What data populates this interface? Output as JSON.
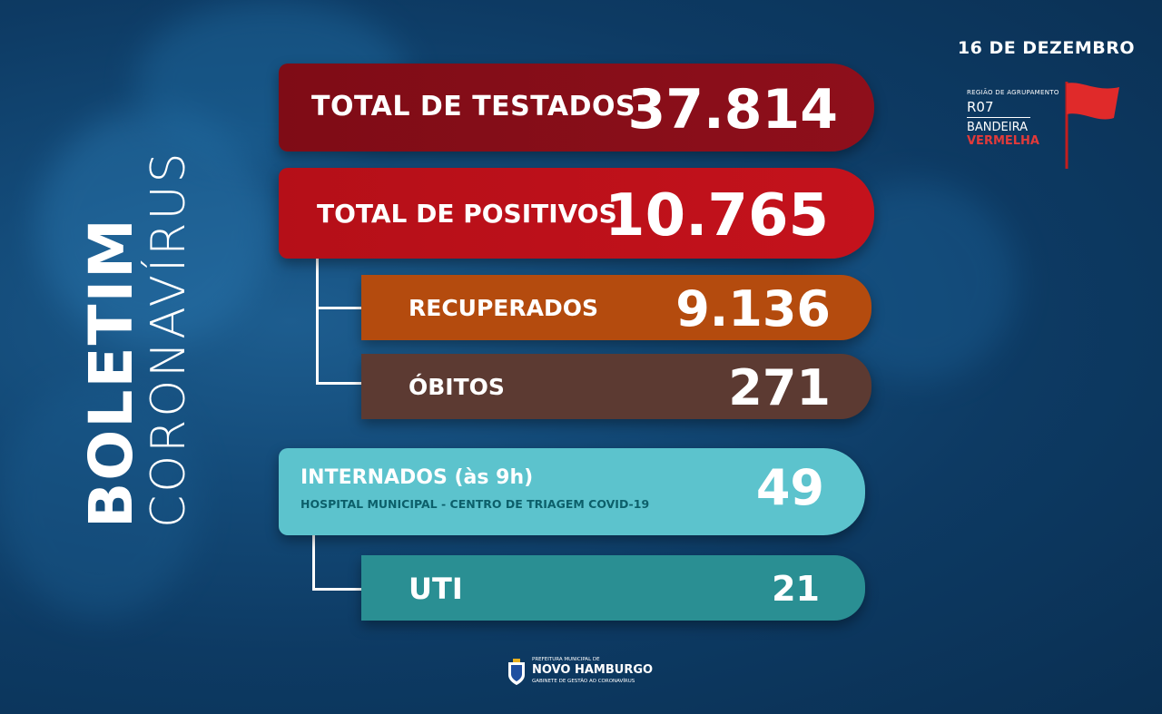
{
  "title": {
    "line1": "BOLETIM",
    "line2": "CORONAVÍRUS"
  },
  "date": "16 DE DEZEMBRO",
  "region": {
    "label": "REGIÃO DE AGRUPAMENTO",
    "code": "R07",
    "flag_line1": "BANDEIRA",
    "flag_line2": "VERMELHA",
    "flag_color": "#e02a2a"
  },
  "stats": {
    "testados": {
      "label": "TOTAL DE TESTADOS",
      "value": "37.814",
      "color": "#8a0e19"
    },
    "positivos": {
      "label": "TOTAL DE POSITIVOS",
      "value": "10.765",
      "color": "#c0111b"
    },
    "recuperados": {
      "label": "RECUPERADOS",
      "value": "9.136",
      "color": "#b44b0e"
    },
    "obitos": {
      "label": "ÓBITOS",
      "value": "271",
      "color": "#5c3a32"
    },
    "internados": {
      "label": "INTERNADOS (às 9h)",
      "sublabel": "HOSPITAL MUNICIPAL - CENTRO DE TRIAGEM COVID-19",
      "value": "49",
      "color": "#5cc3cd"
    },
    "uti": {
      "label": "UTI",
      "value": "21",
      "color": "#2a8f93"
    }
  },
  "footer": {
    "line1": "PREFEITURA MUNICIPAL DE",
    "line2": "NOVO HAMBURGO",
    "line3": "GABINETE DE GESTÃO AO CORONAVÍRUS"
  }
}
